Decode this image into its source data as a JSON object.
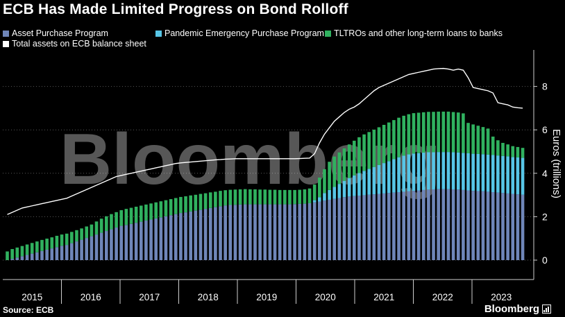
{
  "header": {
    "title": "ECB Has Made Limited Progress on Bond Rolloff"
  },
  "legend": {
    "items": [
      {
        "label": "Asset Purchase Program",
        "color": "#6f86b9"
      },
      {
        "label": "Pandemic Emergency Purchase Program",
        "color": "#57c5e6"
      },
      {
        "label": "TLTROs and other long-term loans to banks",
        "color": "#30b15f"
      },
      {
        "label": "Total assets on ECB balance sheet",
        "color": "#ffffff"
      }
    ]
  },
  "footer": {
    "source": "Source: ECB",
    "brand": "Bloomberg"
  },
  "watermark": "Bloomberg",
  "chart_data": {
    "type": "bar",
    "stacked": true,
    "ylabel": "Euros (trillions)",
    "ylim": [
      0,
      9.4
    ],
    "yticks": [
      0,
      2,
      4,
      6,
      8
    ],
    "grid": true,
    "legend_position": "top",
    "years": [
      "2015",
      "2016",
      "2017",
      "2018",
      "2019",
      "2020",
      "2021",
      "2022",
      "2023"
    ],
    "x_start": "2015-01",
    "bar_count": 105,
    "series": [
      {
        "name": "Asset Purchase Program",
        "color": "#6f86b9",
        "values": [
          0.0,
          0.06,
          0.12,
          0.18,
          0.24,
          0.3,
          0.36,
          0.42,
          0.48,
          0.54,
          0.6,
          0.66,
          0.7,
          0.78,
          0.86,
          0.94,
          1.02,
          1.1,
          1.18,
          1.26,
          1.34,
          1.42,
          1.5,
          1.58,
          1.62,
          1.67,
          1.72,
          1.77,
          1.82,
          1.87,
          1.92,
          1.97,
          2.02,
          2.07,
          2.12,
          2.17,
          2.2,
          2.24,
          2.28,
          2.32,
          2.36,
          2.4,
          2.44,
          2.48,
          2.52,
          2.54,
          2.55,
          2.56,
          2.57,
          2.57,
          2.57,
          2.57,
          2.57,
          2.57,
          2.57,
          2.57,
          2.57,
          2.57,
          2.58,
          2.59,
          2.6,
          2.62,
          2.66,
          2.7,
          2.74,
          2.78,
          2.82,
          2.86,
          2.9,
          2.93,
          2.95,
          2.97,
          2.99,
          3.01,
          3.03,
          3.05,
          3.07,
          3.09,
          3.11,
          3.13,
          3.15,
          3.17,
          3.19,
          3.21,
          3.23,
          3.25,
          3.26,
          3.27,
          3.27,
          3.27,
          3.26,
          3.25,
          3.23,
          3.21,
          3.19,
          3.18,
          3.17,
          3.15,
          3.13,
          3.11,
          3.09,
          3.07,
          3.05,
          3.03,
          3.01
        ]
      },
      {
        "name": "Pandemic Emergency Purchase Program",
        "color": "#57c5e6",
        "values": [
          0,
          0,
          0,
          0,
          0,
          0,
          0,
          0,
          0,
          0,
          0,
          0,
          0,
          0,
          0,
          0,
          0,
          0,
          0,
          0,
          0,
          0,
          0,
          0,
          0,
          0,
          0,
          0,
          0,
          0,
          0,
          0,
          0,
          0,
          0,
          0,
          0,
          0,
          0,
          0,
          0,
          0,
          0,
          0,
          0,
          0,
          0,
          0,
          0,
          0,
          0,
          0,
          0,
          0,
          0,
          0,
          0,
          0,
          0,
          0,
          0,
          0,
          0.1,
          0.2,
          0.35,
          0.45,
          0.55,
          0.65,
          0.75,
          0.85,
          0.95,
          1.04,
          1.12,
          1.19,
          1.26,
          1.33,
          1.4,
          1.47,
          1.54,
          1.61,
          1.66,
          1.7,
          1.72,
          1.72,
          1.72,
          1.72,
          1.71,
          1.71,
          1.71,
          1.71,
          1.71,
          1.71,
          1.71,
          1.71,
          1.71,
          1.71,
          1.71,
          1.71,
          1.71,
          1.71,
          1.71,
          1.71,
          1.7,
          1.7,
          1.7
        ]
      },
      {
        "name": "TLTROs and other long-term loans to banks",
        "color": "#30b15f",
        "values": [
          0.4,
          0.45,
          0.46,
          0.47,
          0.48,
          0.49,
          0.5,
          0.51,
          0.51,
          0.51,
          0.52,
          0.52,
          0.52,
          0.52,
          0.52,
          0.52,
          0.53,
          0.54,
          0.6,
          0.65,
          0.68,
          0.7,
          0.71,
          0.72,
          0.74,
          0.74,
          0.74,
          0.74,
          0.74,
          0.74,
          0.74,
          0.74,
          0.74,
          0.74,
          0.74,
          0.74,
          0.74,
          0.74,
          0.73,
          0.73,
          0.72,
          0.72,
          0.71,
          0.71,
          0.7,
          0.7,
          0.7,
          0.7,
          0.7,
          0.69,
          0.69,
          0.68,
          0.68,
          0.67,
          0.67,
          0.66,
          0.66,
          0.66,
          0.65,
          0.65,
          0.66,
          0.68,
          0.72,
          0.9,
          1.1,
          1.3,
          1.4,
          1.45,
          1.5,
          1.55,
          1.6,
          1.65,
          1.68,
          1.7,
          1.72,
          1.74,
          1.76,
          1.78,
          1.8,
          1.82,
          1.84,
          1.85,
          1.86,
          1.86,
          1.86,
          1.86,
          1.86,
          1.86,
          1.86,
          1.86,
          1.85,
          1.84,
          1.82,
          1.4,
          1.35,
          1.3,
          1.25,
          1.2,
          0.85,
          0.7,
          0.6,
          0.55,
          0.5,
          0.48,
          0.46
        ]
      },
      {
        "name": "Total assets on ECB balance sheet",
        "color": "#ffffff",
        "type": "line",
        "values": [
          2.1,
          2.2,
          2.3,
          2.4,
          2.45,
          2.5,
          2.55,
          2.6,
          2.65,
          2.7,
          2.75,
          2.8,
          2.85,
          2.95,
          3.05,
          3.15,
          3.25,
          3.35,
          3.45,
          3.55,
          3.65,
          3.75,
          3.85,
          3.9,
          3.95,
          4.0,
          4.05,
          4.1,
          4.15,
          4.2,
          4.25,
          4.3,
          4.35,
          4.4,
          4.45,
          4.48,
          4.5,
          4.52,
          4.54,
          4.56,
          4.58,
          4.6,
          4.62,
          4.63,
          4.65,
          4.66,
          4.67,
          4.67,
          4.67,
          4.67,
          4.67,
          4.67,
          4.67,
          4.67,
          4.67,
          4.67,
          4.67,
          4.67,
          4.67,
          4.68,
          4.69,
          4.7,
          4.9,
          5.4,
          5.8,
          6.1,
          6.4,
          6.6,
          6.8,
          6.95,
          7.05,
          7.2,
          7.4,
          7.6,
          7.8,
          7.95,
          8.05,
          8.15,
          8.25,
          8.35,
          8.45,
          8.55,
          8.6,
          8.65,
          8.7,
          8.75,
          8.8,
          8.82,
          8.83,
          8.8,
          8.75,
          8.8,
          8.75,
          8.4,
          7.95,
          7.9,
          7.85,
          7.8,
          7.7,
          7.25,
          7.2,
          7.15,
          7.05,
          7.02,
          7.0
        ]
      }
    ]
  }
}
